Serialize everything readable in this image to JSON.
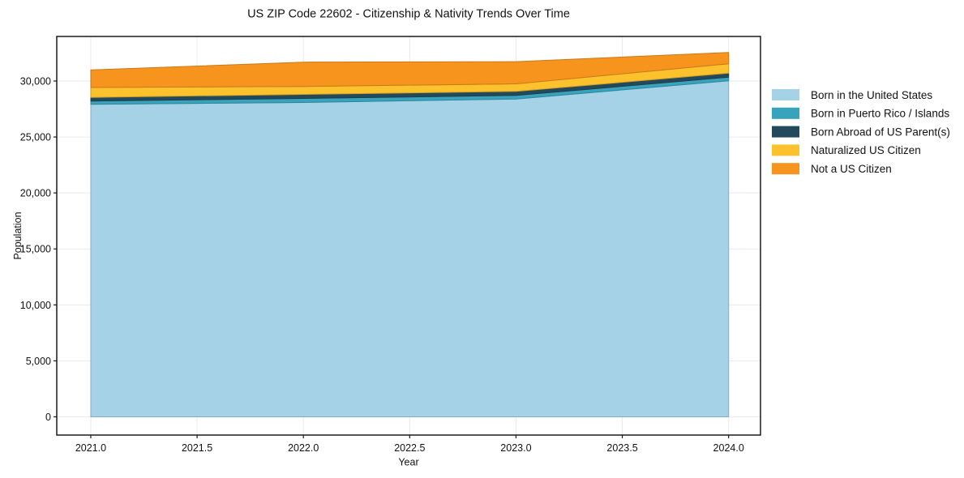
{
  "chart_data": {
    "type": "area",
    "stacked": true,
    "title": "US ZIP Code 22602 - Citizenship & Nativity Trends Over Time",
    "xlabel": "Year",
    "ylabel": "Population",
    "x": [
      2021,
      2022,
      2023,
      2024
    ],
    "series": [
      {
        "name": "Born in the United States",
        "color": "#A6D2E7",
        "values": [
          27925,
          28080,
          28390,
          30020
        ]
      },
      {
        "name": "Born in Puerto Rico / Islands",
        "color": "#38A3BC",
        "values": [
          290,
          360,
          320,
          320
        ]
      },
      {
        "name": "Born Abroad of US Parent(s)",
        "color": "#234A5C",
        "values": [
          325,
          365,
          360,
          360
        ]
      },
      {
        "name": "Naturalized US Citizen",
        "color": "#FCC22D",
        "values": [
          880,
          710,
          675,
          840
        ]
      },
      {
        "name": "Not a US Citizen",
        "color": "#F7941E",
        "values": [
          1570,
          2170,
          1985,
          1015
        ]
      }
    ],
    "stack_totals": [
      30990,
      31685,
      31730,
      32555
    ],
    "x_ticks": [
      2021.0,
      2021.5,
      2022.0,
      2022.5,
      2023.0,
      2023.5,
      2024.0
    ],
    "x_tick_labels": [
      "2021.0",
      "2021.5",
      "2022.0",
      "2022.5",
      "2023.0",
      "2023.5",
      "2024.0"
    ],
    "y_ticks": [
      0,
      5000,
      10000,
      15000,
      20000,
      25000,
      30000
    ],
    "y_tick_labels": [
      "0",
      "5,000",
      "10,000",
      "15,000",
      "20,000",
      "25,000",
      "30,000"
    ],
    "xlim": [
      2020.84,
      2024.15
    ],
    "ylim": [
      -1630,
      33980
    ],
    "grid": true,
    "grid_color": "#eaeaea",
    "axis_color": "#1a1a1a",
    "legend_position": "right",
    "background": "#ffffff"
  }
}
